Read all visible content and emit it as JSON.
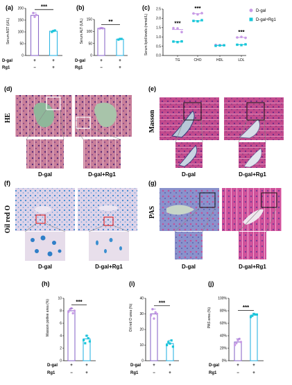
{
  "colors": {
    "dgal": "#8c6bc9",
    "rg1": "#2fb5e3",
    "dgal_dot": "#c89be6",
    "rg1_dot": "#18c7d9",
    "he_bg": "#c77f98",
    "masson_bg": "#c0488b",
    "oil_bg": "#d8cfe6",
    "oil_blue": "#3a8fd0",
    "pas_bg": "#cc4d98",
    "pas_blue": "#7a88c8"
  },
  "groups": {
    "dgal": "D-gal",
    "rg1": "Rg1"
  },
  "row_labels": {
    "dgal": "D-gal",
    "rg1": "Rg1",
    "plus": "+",
    "minus": "−"
  },
  "panels": {
    "a": {
      "label": "(a)",
      "ylabel": "Serum AST (U/L)",
      "sig": "***"
    },
    "b": {
      "label": "(b)",
      "ylabel": "Serum ALT (U/L)",
      "sig": "**"
    },
    "c": {
      "label": "(c)",
      "ylabel": "Serum lipid levels (mmol/L)",
      "legend": [
        "D-gal",
        "D-gal+Rg1"
      ]
    },
    "d": {
      "label": "(d)",
      "side": "HE",
      "cap_left": "D-gal",
      "cap_right": "D-gal+Rg1"
    },
    "e": {
      "label": "(e)",
      "side": "Masson",
      "cap_left": "D-gal",
      "cap_right": "D-gal+Rg1"
    },
    "f": {
      "label": "(f)",
      "side": "Oil red O",
      "cap_left": "D-gal",
      "cap_right": "D-gal+Rg1"
    },
    "g": {
      "label": "(g)",
      "side": "PAS",
      "cap_left": "D-gal",
      "cap_right": "D-gal+Rg1"
    },
    "h": {
      "label": "(h)",
      "ylabel": "Masson poitive area (%)",
      "sig": "***"
    },
    "i": {
      "label": "(i)",
      "ylabel": "Oil red O area (%)",
      "sig": "***"
    },
    "j": {
      "label": "(j)",
      "ylabel": "PAS area (%)",
      "sig": "***"
    }
  },
  "chart_data": [
    {
      "id": "a",
      "type": "bar",
      "categories": [
        "D-gal",
        "D-gal+Rg1"
      ],
      "values": [
        170,
        103
      ],
      "ylim": [
        0,
        200
      ],
      "yticks": [
        "0",
        "50",
        "100",
        "150",
        "200"
      ],
      "ylabel": "Serum AST (U/L)",
      "points": [
        [
          180,
          164,
          172
        ],
        [
          100,
          104,
          106
        ]
      ],
      "significance": "***"
    },
    {
      "id": "b",
      "type": "bar",
      "categories": [
        "D-gal",
        "D-gal+Rg1"
      ],
      "values": [
        113,
        68
      ],
      "ylim": [
        0,
        150
      ],
      "yticks": [
        "0",
        "50",
        "100",
        "150"
      ],
      "ylabel": "Serum ALT (U/L)",
      "points": [
        [
          112,
          114,
          113
        ],
        [
          66,
          69,
          69
        ]
      ],
      "significance": "**"
    },
    {
      "id": "c",
      "type": "scatter",
      "categories": [
        "TG",
        "CHO",
        "HDL",
        "LDL"
      ],
      "ylim": [
        0,
        2.5
      ],
      "yticks": [
        "0.0",
        "0.5",
        "1.0",
        "1.5",
        "2.0",
        "2.5"
      ],
      "ylabel": "Serum lipid levels (mmol/L)",
      "series": [
        {
          "name": "D-gal",
          "values": [
            [
              1.47,
              1.46,
              1.26
            ],
            [
              2.26,
              2.21,
              2.28
            ],
            [
              0.57,
              0.56,
              0.55
            ],
            [
              0.97,
              1.0,
              0.95
            ]
          ]
        },
        {
          "name": "D-gal+Rg1",
          "values": [
            [
              0.75,
              0.72,
              0.76
            ],
            [
              1.86,
              1.84,
              1.9
            ],
            [
              0.52,
              0.54,
              0.55
            ],
            [
              0.58,
              0.56,
              0.6
            ]
          ]
        }
      ],
      "significance": [
        "***",
        "***",
        "",
        "***"
      ]
    },
    {
      "id": "h",
      "type": "bar",
      "categories": [
        "D-gal",
        "D-gal+Rg1"
      ],
      "values": [
        8,
        3.5
      ],
      "ylim": [
        0,
        10
      ],
      "yticks": [
        "0",
        "2",
        "4",
        "6",
        "8",
        "10"
      ],
      "ylabel": "Masson poitive area (%)",
      "points": [
        [
          7.8,
          8.2,
          8.4,
          7.6,
          8.0
        ],
        [
          3.3,
          2.8,
          4.0,
          3.6,
          3.1
        ]
      ],
      "significance": "***"
    },
    {
      "id": "i",
      "type": "bar",
      "categories": [
        "D-gal",
        "D-gal+Rg1"
      ],
      "values": [
        30,
        11
      ],
      "ylim": [
        0,
        40
      ],
      "yticks": [
        "0",
        "10",
        "20",
        "30",
        "40"
      ],
      "ylabel": "Oil red O area (%)",
      "points": [
        [
          29,
          33,
          27,
          31,
          30
        ],
        [
          10,
          12,
          11,
          13,
          9
        ]
      ],
      "significance": "***"
    },
    {
      "id": "j",
      "type": "bar",
      "categories": [
        "D-gal",
        "D-gal+Rg1"
      ],
      "values": [
        30,
        73
      ],
      "ylim": [
        0,
        100
      ],
      "yticks": [
        "0%",
        "20%",
        "40%",
        "60%",
        "80%",
        "100%"
      ],
      "ylabel": "PAS area (%)",
      "points": [
        [
          25,
          28,
          33,
          35,
          30
        ],
        [
          70,
          72,
          75,
          74,
          74
        ]
      ],
      "significance": "***"
    }
  ]
}
